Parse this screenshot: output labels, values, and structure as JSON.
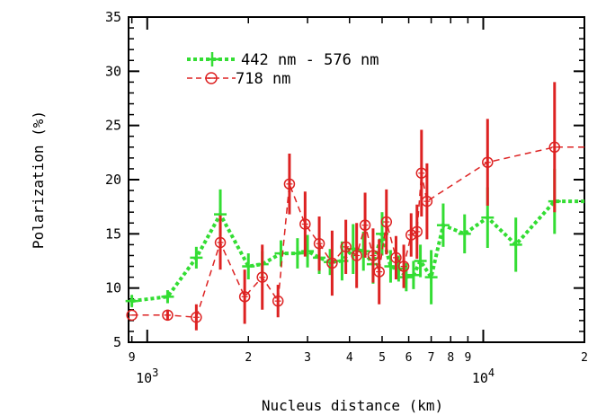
{
  "chart_data": {
    "type": "line",
    "title": "",
    "xlabel": "Nucleus distance (km)",
    "ylabel": "Polarization (%)",
    "xscale": "log",
    "xlim": [
      880,
      20000
    ],
    "ylim": [
      5,
      35
    ],
    "grid": false,
    "legend_position": "top-left",
    "y_ticks": [
      5,
      10,
      15,
      20,
      25,
      30,
      35
    ],
    "x_major_ticks": [
      {
        "value": 1000,
        "base": "10",
        "exponent": "3"
      },
      {
        "value": 10000,
        "base": "10",
        "exponent": "4"
      }
    ],
    "x_minor_tick_labels": [
      {
        "value": 900,
        "label": "9"
      },
      {
        "value": 2000,
        "label": "2"
      },
      {
        "value": 3000,
        "label": "3"
      },
      {
        "value": 4000,
        "label": "4"
      },
      {
        "value": 5000,
        "label": "5"
      },
      {
        "value": 6000,
        "label": "6"
      },
      {
        "value": 7000,
        "label": "7"
      },
      {
        "value": 8000,
        "label": "8"
      },
      {
        "value": 9000,
        "label": "9"
      },
      {
        "value": 20000,
        "label": "2"
      }
    ],
    "series": [
      {
        "name": "442 nm - 576 nm",
        "color": "#33dd33",
        "marker": "plus",
        "line_style": "dotted",
        "points": [
          {
            "x": 900,
            "y": 8.8,
            "err": 0.5
          },
          {
            "x": 1150,
            "y": 9.2,
            "err": 0.6
          },
          {
            "x": 1400,
            "y": 12.8,
            "err": 1.0
          },
          {
            "x": 1650,
            "y": 16.8,
            "err": 2.3
          },
          {
            "x": 2000,
            "y": 12.0,
            "err": 1.2
          },
          {
            "x": 2200,
            "y": 12.2,
            "err": 1.2
          },
          {
            "x": 2500,
            "y": 13.2,
            "err": 1.2
          },
          {
            "x": 2800,
            "y": 13.2,
            "err": 1.4
          },
          {
            "x": 3000,
            "y": 13.4,
            "err": 1.5
          },
          {
            "x": 3250,
            "y": 12.8,
            "err": 1.5
          },
          {
            "x": 3500,
            "y": 12.4,
            "err": 1.2
          },
          {
            "x": 3800,
            "y": 12.5,
            "err": 1.8
          },
          {
            "x": 4100,
            "y": 13.6,
            "err": 2.3
          },
          {
            "x": 4400,
            "y": 13.4,
            "err": 1.8
          },
          {
            "x": 4700,
            "y": 12.2,
            "err": 1.8
          },
          {
            "x": 5000,
            "y": 15.0,
            "err": 2.0
          },
          {
            "x": 5300,
            "y": 12.0,
            "err": 1.5
          },
          {
            "x": 5600,
            "y": 11.8,
            "err": 1.2
          },
          {
            "x": 5900,
            "y": 11.0,
            "err": 1.3
          },
          {
            "x": 6200,
            "y": 11.2,
            "err": 1.3
          },
          {
            "x": 6500,
            "y": 12.5,
            "err": 1.5
          },
          {
            "x": 7000,
            "y": 11.0,
            "err": 2.5
          },
          {
            "x": 7600,
            "y": 15.8,
            "err": 2.0
          },
          {
            "x": 8800,
            "y": 15.0,
            "err": 1.8
          },
          {
            "x": 10300,
            "y": 16.5,
            "err": 2.8
          },
          {
            "x": 12500,
            "y": 14.0,
            "err": 2.5
          },
          {
            "x": 16300,
            "y": 18.0,
            "err": 3.0
          },
          {
            "x": 20000,
            "y": 18.0,
            "err": 0
          }
        ]
      },
      {
        "name": "718 nm",
        "color": "#dd2222",
        "marker": "circle",
        "line_style": "dashed",
        "points": [
          {
            "x": 900,
            "y": 7.5,
            "err": 0
          },
          {
            "x": 1150,
            "y": 7.5,
            "err": 0.5
          },
          {
            "x": 1400,
            "y": 7.3,
            "err": 1.2
          },
          {
            "x": 1650,
            "y": 14.2,
            "err": 2.5
          },
          {
            "x": 1950,
            "y": 9.2,
            "err": 2.5
          },
          {
            "x": 2200,
            "y": 11.0,
            "err": 3.0
          },
          {
            "x": 2450,
            "y": 8.8,
            "err": 1.5
          },
          {
            "x": 2650,
            "y": 19.6,
            "err": 2.8
          },
          {
            "x": 2950,
            "y": 15.9,
            "err": 3.0
          },
          {
            "x": 3250,
            "y": 14.1,
            "err": 2.5
          },
          {
            "x": 3550,
            "y": 12.3,
            "err": 3.0
          },
          {
            "x": 3900,
            "y": 13.8,
            "err": 2.5
          },
          {
            "x": 4200,
            "y": 13.0,
            "err": 3.0
          },
          {
            "x": 4450,
            "y": 15.8,
            "err": 3.0
          },
          {
            "x": 4700,
            "y": 13.0,
            "err": 2.5
          },
          {
            "x": 4900,
            "y": 11.5,
            "err": 3.0
          },
          {
            "x": 5150,
            "y": 16.1,
            "err": 3.0
          },
          {
            "x": 5500,
            "y": 12.8,
            "err": 2.0
          },
          {
            "x": 5800,
            "y": 12.0,
            "err": 2.0
          },
          {
            "x": 6100,
            "y": 14.9,
            "err": 2.0
          },
          {
            "x": 6350,
            "y": 15.2,
            "err": 2.5
          },
          {
            "x": 6550,
            "y": 20.6,
            "err": 4.0
          },
          {
            "x": 6800,
            "y": 18.0,
            "err": 3.5
          },
          {
            "x": 10300,
            "y": 21.6,
            "err": 4.0
          },
          {
            "x": 16300,
            "y": 23.0,
            "err": 6.0
          },
          {
            "x": 20000,
            "y": 23.0,
            "err": 0
          }
        ]
      }
    ]
  }
}
